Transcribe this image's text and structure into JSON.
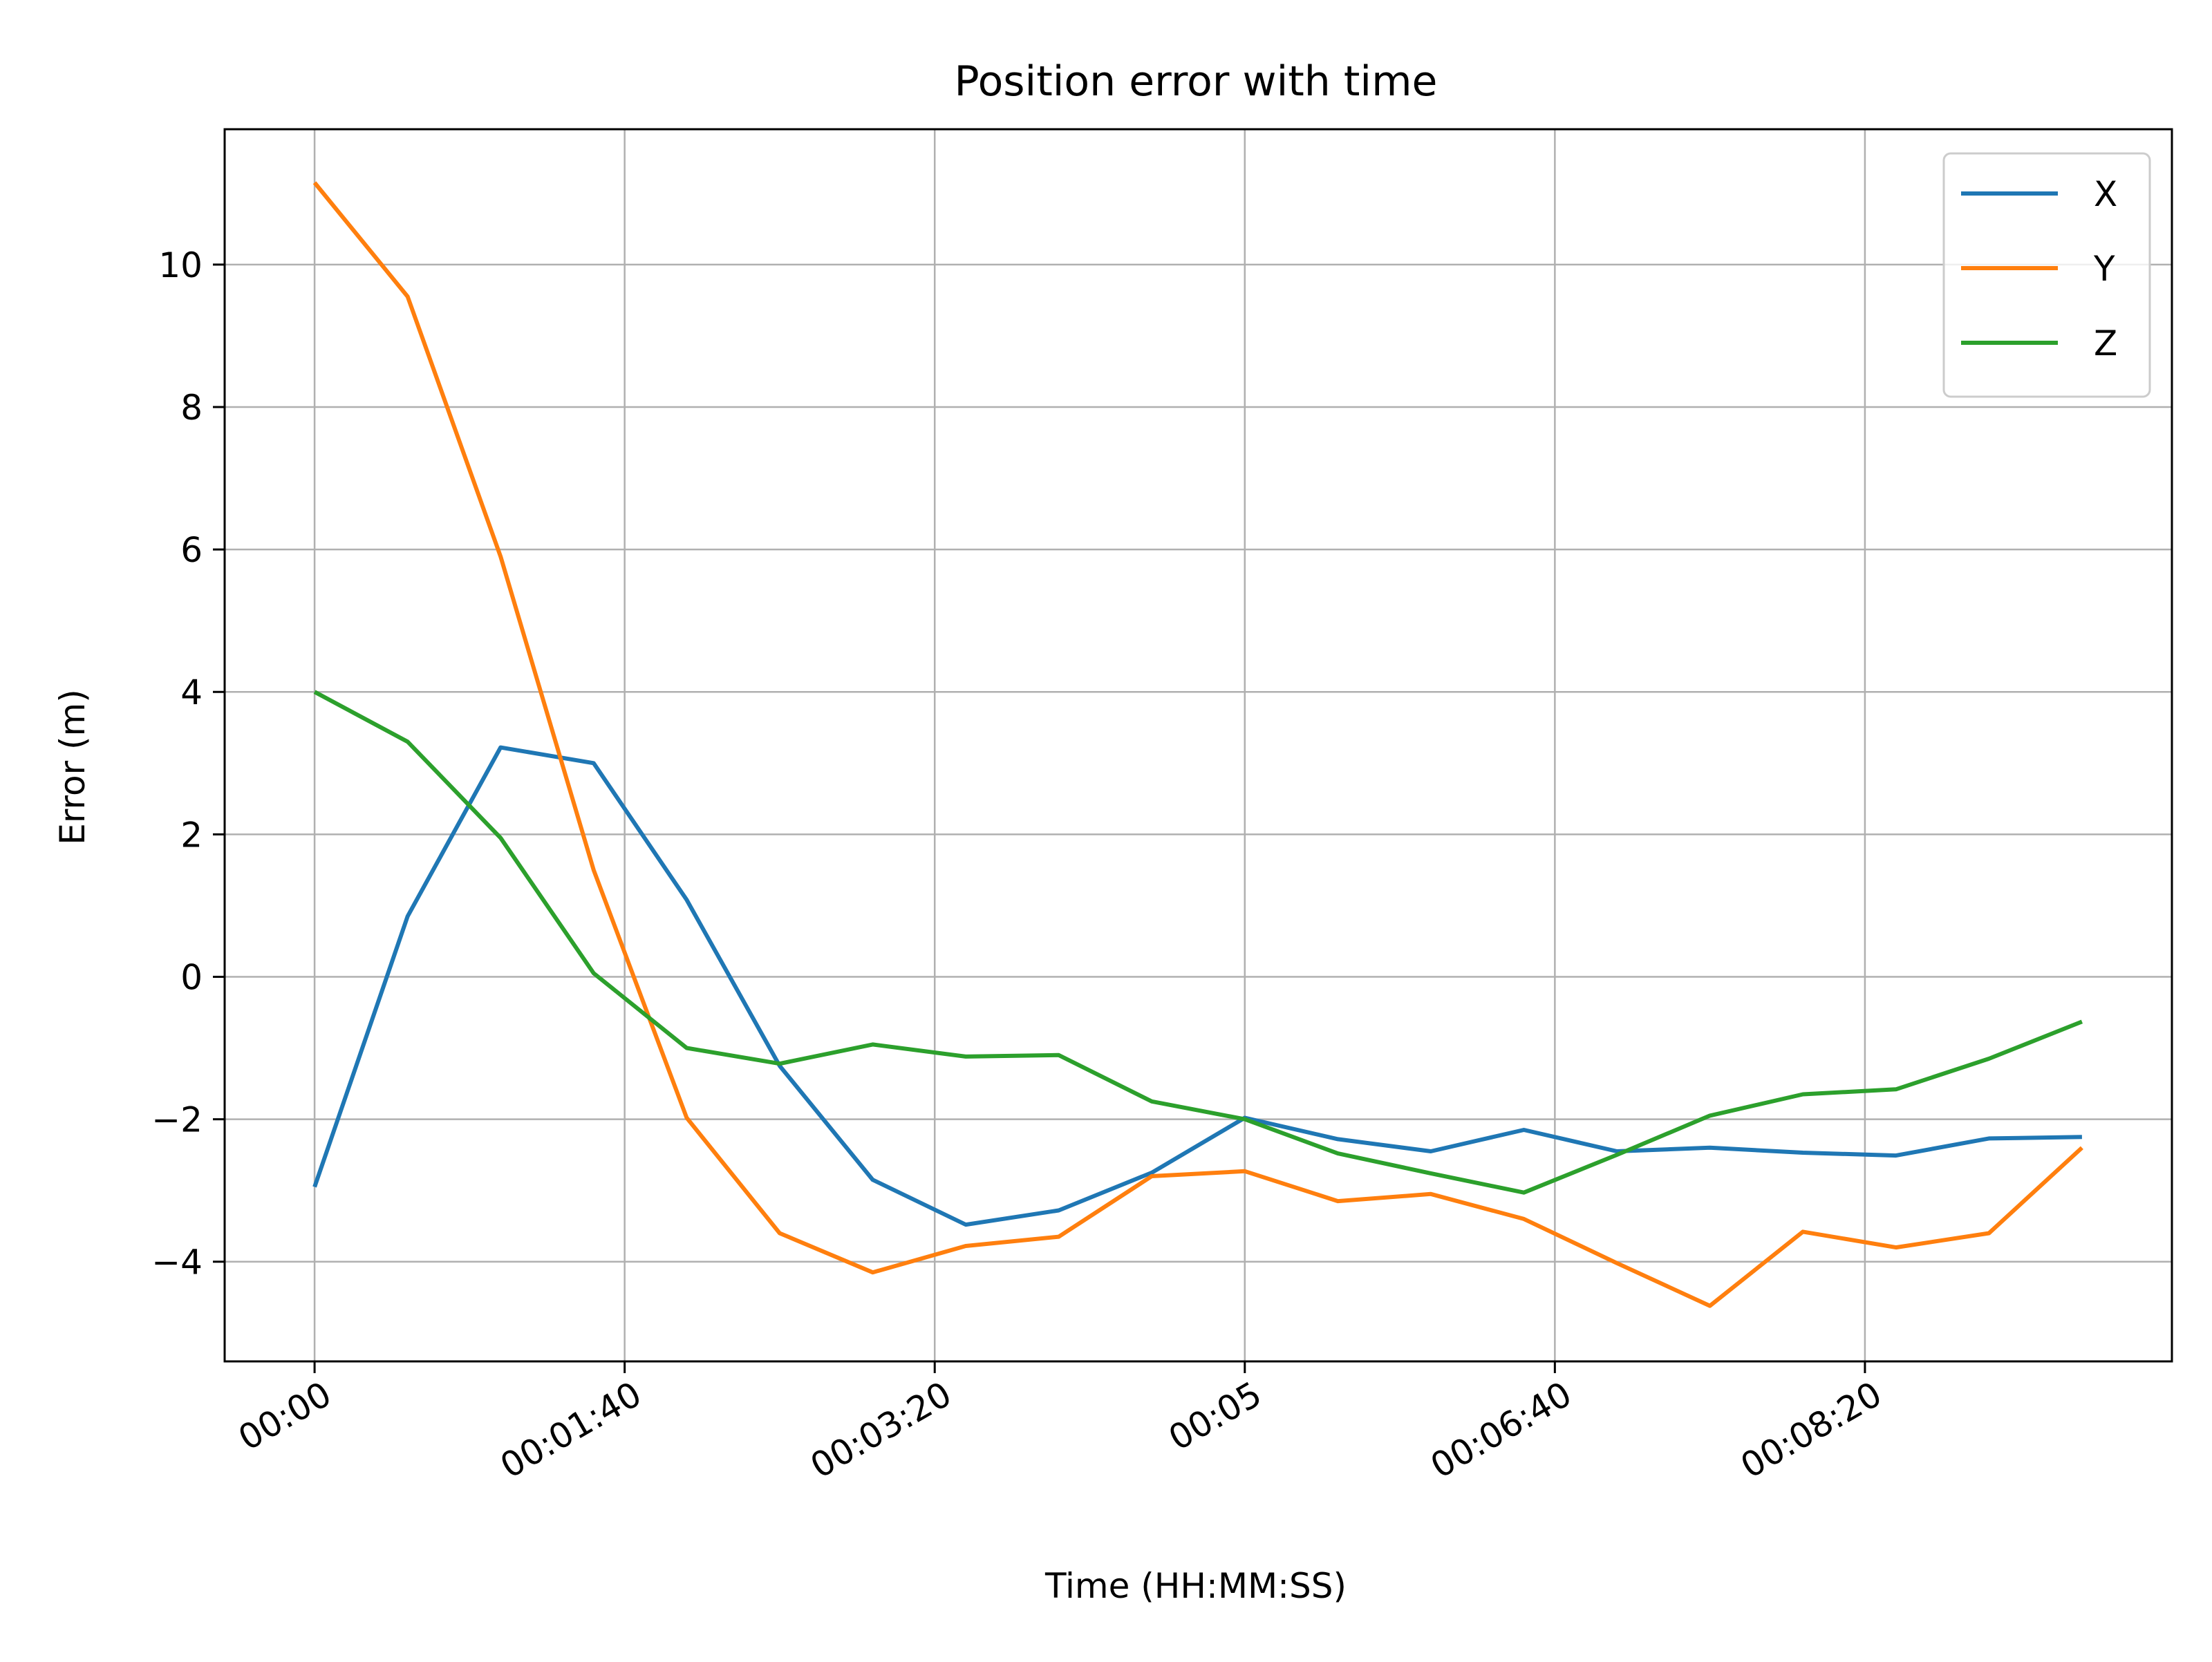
{
  "chart_data": {
    "type": "line",
    "title": "Position error with time",
    "xlabel": "Time (HH:MM:SS)",
    "ylabel": "Error (m)",
    "x": [
      0,
      30,
      60,
      90,
      120,
      150,
      180,
      210,
      240,
      270,
      300,
      330,
      360,
      390,
      420,
      450,
      480,
      510,
      540,
      570
    ],
    "x_ticks": [
      0,
      100,
      200,
      300,
      400,
      500
    ],
    "x_tick_labels": [
      "00:00",
      "00:01:40",
      "00:03:20",
      "00:05",
      "00:06:40",
      "00:08:20"
    ],
    "xlim": [
      -29,
      599
    ],
    "ylim": [
      -5.4,
      11.9
    ],
    "y_ticks": [
      -4,
      -2,
      0,
      2,
      4,
      6,
      8,
      10
    ],
    "y_tick_labels": [
      "−4",
      "−2",
      "0",
      "2",
      "4",
      "6",
      "8",
      "10"
    ],
    "grid": true,
    "legend_position": "top-right",
    "series": [
      {
        "name": "X",
        "color": "#1f77b4",
        "values": [
          -2.95,
          0.85,
          3.22,
          3.0,
          1.08,
          -1.25,
          -2.85,
          -3.48,
          -3.28,
          -2.75,
          -1.98,
          -2.28,
          -2.45,
          -2.15,
          -2.45,
          -2.4,
          -2.47,
          -2.51,
          -2.27,
          -2.25
        ]
      },
      {
        "name": "Y",
        "color": "#ff7f0e",
        "values": [
          11.15,
          9.55,
          5.9,
          1.5,
          -1.98,
          -3.6,
          -4.15,
          -3.78,
          -3.65,
          -2.8,
          -2.73,
          -3.15,
          -3.05,
          -3.4,
          -4.02,
          -4.62,
          -3.58,
          -3.8,
          -3.6,
          -2.4
        ]
      },
      {
        "name": "Z",
        "color": "#2ca02c",
        "values": [
          4.0,
          3.3,
          1.95,
          0.05,
          -1.0,
          -1.22,
          -0.95,
          -1.12,
          -1.1,
          -1.75,
          -2.0,
          -2.48,
          -2.76,
          -3.03,
          -2.5,
          -1.95,
          -1.65,
          -1.58,
          -1.15,
          -0.63
        ]
      }
    ]
  }
}
